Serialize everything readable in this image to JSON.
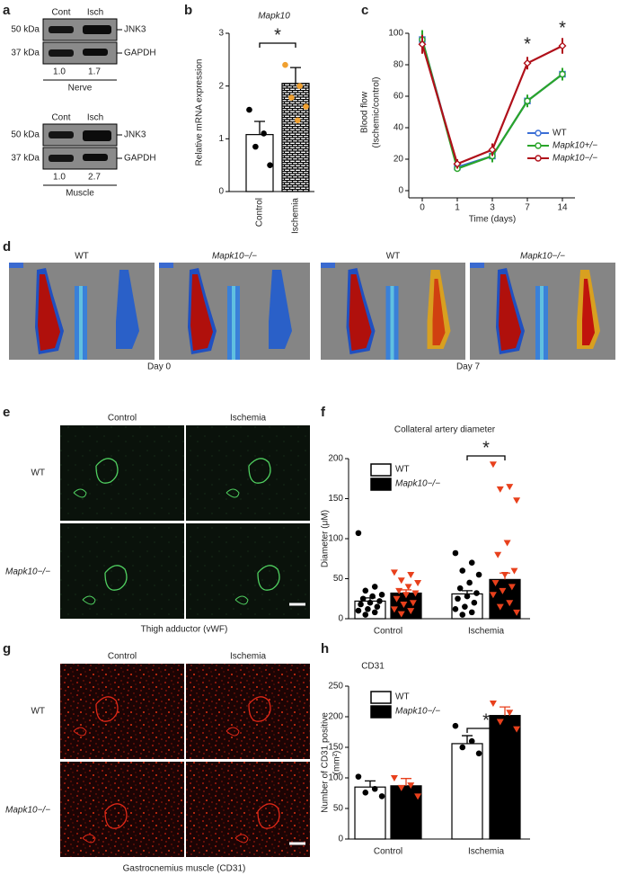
{
  "panel_labels": [
    "a",
    "b",
    "c",
    "d",
    "e",
    "f",
    "g",
    "h"
  ],
  "panel_a": {
    "blots": [
      {
        "lanes": [
          "Cont",
          "Isch"
        ],
        "bands": [
          {
            "size": "50 kDa",
            "protein": "JNK3"
          },
          {
            "size": "37 kDa",
            "protein": "GAPDH"
          }
        ],
        "ratios": [
          "1.0",
          "1.7"
        ],
        "tissue": "Nerve"
      },
      {
        "lanes": [
          "Cont",
          "Isch"
        ],
        "bands": [
          {
            "size": "50 kDa",
            "protein": "JNK3"
          },
          {
            "size": "37 kDa",
            "protein": "GAPDH"
          }
        ],
        "ratios": [
          "1.0",
          "2.7"
        ],
        "tissue": "Muscle"
      }
    ]
  },
  "panel_d": {
    "genotypes": [
      "WT",
      "Mapk10−/−",
      "WT",
      "Mapk10−/−"
    ],
    "days": [
      "Day 0",
      "Day 7"
    ]
  },
  "panel_e": {
    "columns": [
      "Control",
      "Ischemia"
    ],
    "rows": [
      "WT",
      "Mapk10−/−"
    ],
    "caption": "Thigh adductor (vWF)"
  },
  "panel_g": {
    "columns": [
      "Control",
      "Ischemia"
    ],
    "rows": [
      "WT",
      "Mapk10−/−"
    ],
    "caption": "Gastrocnemius muscle (CD31)"
  },
  "chart_data": [
    {
      "type": "bar",
      "title": "Mapk10",
      "ylabel": "Relative mRNA expression",
      "categories": [
        "Control",
        "Ischemia"
      ],
      "values": [
        1.08,
        2.05
      ],
      "errors": [
        0.25,
        0.3
      ],
      "points": [
        [
          1.55,
          1.1,
          0.85,
          0.5
        ],
        [
          2.4,
          2.0,
          1.78,
          1.61,
          1.35
        ]
      ],
      "point_colors": [
        "#000000",
        "#f0a030"
      ],
      "ylim": [
        0,
        3
      ],
      "yticks": [
        0,
        1,
        2,
        3
      ],
      "annotation": "*"
    },
    {
      "type": "line",
      "ylabel": [
        "Blood flow",
        "(Ischemic/control)"
      ],
      "xlabel": "Time (days)",
      "categories": [
        "0",
        "1",
        "3",
        "7",
        "14"
      ],
      "series": [
        {
          "name": "WT",
          "color": "#3b6fd6",
          "marker": "square",
          "values": [
            96,
            15,
            22,
            57,
            74
          ],
          "errors": [
            5,
            2,
            3,
            3,
            3
          ]
        },
        {
          "name": "Mapk10+/−",
          "color": "#2aa52a",
          "marker": "circle",
          "values": [
            96,
            14,
            22,
            57,
            74
          ],
          "errors": [
            6,
            2,
            4,
            4,
            4
          ]
        },
        {
          "name": "Mapk10−/−",
          "color": "#b0101a",
          "marker": "diamond",
          "values": [
            93,
            17,
            26,
            81,
            92
          ],
          "errors": [
            6,
            3,
            4,
            4,
            5
          ]
        }
      ],
      "ylim": [
        0,
        100
      ],
      "yticks": [
        0,
        20,
        40,
        60,
        80,
        100
      ],
      "annotations": [
        "*",
        "*"
      ]
    },
    {
      "type": "bar",
      "title": "Collateral artery diameter",
      "ylabel": "Diameter (μM)",
      "categories": [
        "Control",
        "Ischemia"
      ],
      "series": [
        {
          "name": "WT",
          "color": "#ffffff",
          "point_color": "#000000",
          "values": [
            22,
            31
          ],
          "errors": [
            4,
            4
          ],
          "points": [
            [
              107,
              40,
              35,
              30,
              28,
              25,
              22,
              20,
              18,
              15,
              12,
              10,
              8,
              5
            ],
            [
              82,
              70,
              60,
              55,
              45,
              38,
              32,
              28,
              25,
              20,
              15,
              12,
              8,
              5
            ]
          ]
        },
        {
          "name": "Mapk10−/−",
          "color": "#000000",
          "point_color": "#e8401c",
          "values": [
            32,
            49
          ],
          "errors": [
            4,
            8
          ],
          "points": [
            [
              58,
              55,
              48,
              45,
              40,
              35,
              32,
              30,
              25,
              20,
              18,
              12,
              10,
              6
            ],
            [
              193,
              165,
              162,
              148,
              95,
              80,
              60,
              55,
              45,
              40,
              35,
              30,
              20,
              15,
              8
            ]
          ]
        }
      ],
      "ylim": [
        0,
        200
      ],
      "yticks": [
        0,
        50,
        100,
        150,
        200
      ],
      "annotation": "*"
    },
    {
      "type": "bar",
      "title": "CD31",
      "ylabel": [
        "Number of CD31 positive",
        "(mm²)"
      ],
      "categories": [
        "Control",
        "Ischemia"
      ],
      "series": [
        {
          "name": "WT",
          "color": "#ffffff",
          "point_color": "#000000",
          "values": [
            85,
            156
          ],
          "errors": [
            10,
            13
          ],
          "points": [
            [
              102,
              82,
              76,
              70
            ],
            [
              185,
              160,
              150,
              140
            ]
          ]
        },
        {
          "name": "Mapk10−/−",
          "color": "#000000",
          "point_color": "#e8401c",
          "values": [
            87,
            202
          ],
          "errors": [
            12,
            14
          ],
          "points": [
            [
              100,
              88,
              84,
              70
            ],
            [
              222,
              207,
              192,
              180
            ]
          ]
        }
      ],
      "ylim": [
        0,
        250
      ],
      "yticks": [
        0,
        50,
        100,
        150,
        200,
        250
      ],
      "annotation": "*"
    }
  ]
}
